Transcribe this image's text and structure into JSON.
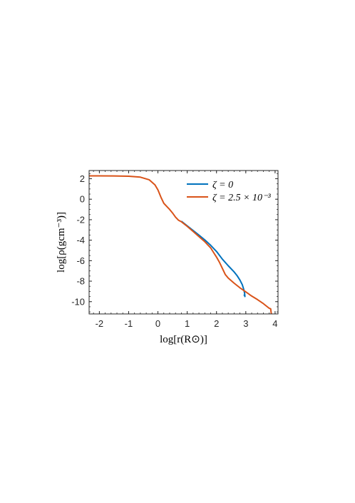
{
  "chart_data": {
    "type": "line",
    "xlabel": "log[r(R⊙)]",
    "ylabel": "log[ρ(gcm⁻³)]",
    "xlim": [
      -2.35,
      4.1
    ],
    "ylim": [
      -11.2,
      2.8
    ],
    "xticks": [
      -2,
      -1,
      0,
      1,
      2,
      3,
      4
    ],
    "yticks": [
      2,
      0,
      -2,
      -4,
      -6,
      -8,
      -10
    ],
    "xtick_labels": [
      "-2",
      "-1",
      "0",
      "1",
      "2",
      "3",
      "4"
    ],
    "ytick_labels": [
      "2",
      "0",
      "-2",
      "-4",
      "-6",
      "-8",
      "-10"
    ],
    "grid": false,
    "legend_position": "top-right",
    "series": [
      {
        "name": "ζ = 0",
        "color": "#0072BD",
        "points": [
          [
            0.8,
            -2.15
          ],
          [
            1.0,
            -2.6
          ],
          [
            1.2,
            -3.05
          ],
          [
            1.4,
            -3.5
          ],
          [
            1.6,
            -3.98
          ],
          [
            1.8,
            -4.5
          ],
          [
            2.0,
            -5.1
          ],
          [
            2.2,
            -5.85
          ],
          [
            2.4,
            -6.5
          ],
          [
            2.6,
            -7.1
          ],
          [
            2.7,
            -7.45
          ],
          [
            2.8,
            -7.9
          ],
          [
            2.88,
            -8.35
          ],
          [
            2.93,
            -8.8
          ],
          [
            2.96,
            -9.2
          ],
          [
            2.97,
            -9.5
          ],
          [
            2.94,
            -9.3
          ]
        ]
      },
      {
        "name": "ζ = 2.5 × 10⁻³",
        "color": "#D95319",
        "points": [
          [
            -2.35,
            2.28
          ],
          [
            -2.0,
            2.28
          ],
          [
            -1.5,
            2.27
          ],
          [
            -1.0,
            2.24
          ],
          [
            -0.6,
            2.15
          ],
          [
            -0.3,
            1.9
          ],
          [
            -0.1,
            1.4
          ],
          [
            0.0,
            0.9
          ],
          [
            0.1,
            0.2
          ],
          [
            0.2,
            -0.4
          ],
          [
            0.3,
            -0.7
          ],
          [
            0.4,
            -1.0
          ],
          [
            0.5,
            -1.35
          ],
          [
            0.6,
            -1.75
          ],
          [
            0.7,
            -2.05
          ],
          [
            0.8,
            -2.2
          ],
          [
            1.0,
            -2.65
          ],
          [
            1.2,
            -3.15
          ],
          [
            1.4,
            -3.65
          ],
          [
            1.6,
            -4.15
          ],
          [
            1.8,
            -4.75
          ],
          [
            1.9,
            -5.2
          ],
          [
            2.0,
            -5.65
          ],
          [
            2.1,
            -6.15
          ],
          [
            2.2,
            -6.75
          ],
          [
            2.3,
            -7.35
          ],
          [
            2.4,
            -7.7
          ],
          [
            2.6,
            -8.2
          ],
          [
            2.8,
            -8.65
          ],
          [
            3.0,
            -9.05
          ],
          [
            3.2,
            -9.45
          ],
          [
            3.4,
            -9.8
          ],
          [
            3.6,
            -10.2
          ],
          [
            3.8,
            -10.65
          ],
          [
            3.85,
            -10.7
          ],
          [
            3.87,
            -11.2
          ]
        ]
      }
    ]
  }
}
